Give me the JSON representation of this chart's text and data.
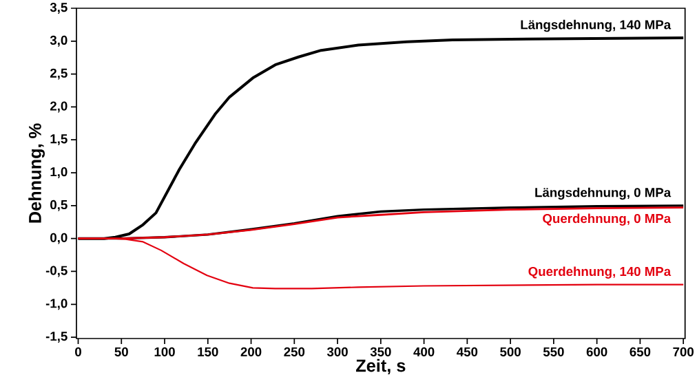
{
  "chart_data": {
    "type": "line",
    "xlabel": "Zeit, s",
    "ylabel": "Dehnung, %",
    "xlim": [
      -2,
      702
    ],
    "ylim": [
      -1.52,
      3.5
    ],
    "xticks": [
      0,
      50,
      100,
      150,
      200,
      250,
      300,
      350,
      400,
      450,
      500,
      550,
      600,
      650,
      700
    ],
    "yticks": [
      {
        "value": -1.5,
        "label": "-1,5"
      },
      {
        "value": -1.0,
        "label": "-1,0"
      },
      {
        "value": -0.5,
        "label": "-0,5"
      },
      {
        "value": 0.0,
        "label": "0,0"
      },
      {
        "value": 0.5,
        "label": "0,5"
      },
      {
        "value": 1.0,
        "label": "1,0"
      },
      {
        "value": 1.5,
        "label": "1,5"
      },
      {
        "value": 2.0,
        "label": "2,0"
      },
      {
        "value": 2.5,
        "label": "2,5"
      },
      {
        "value": 3.0,
        "label": "3,0"
      },
      {
        "value": 3.5,
        "label": "3,5"
      }
    ],
    "grid": false,
    "legend": false,
    "marker": "none",
    "line_style": "solid",
    "series": [
      {
        "name": "Längsdehnung, 140 MPa",
        "color": "#000000",
        "x": [
          0,
          30,
          43,
          59,
          75,
          90,
          117,
          135,
          159,
          175,
          202,
          228,
          255,
          281,
          324,
          380,
          433,
          500,
          600,
          700
        ],
        "values": [
          0,
          0,
          0.02,
          0.07,
          0.21,
          0.39,
          1.05,
          1.44,
          1.9,
          2.15,
          2.44,
          2.64,
          2.76,
          2.86,
          2.94,
          2.99,
          3.02,
          3.03,
          3.04,
          3.05
        ]
      },
      {
        "name": "Längsdehnung, 0 MPa",
        "color": "#000000",
        "x": [
          0,
          50,
          100,
          150,
          200,
          250,
          300,
          350,
          400,
          500,
          600,
          700
        ],
        "values": [
          0,
          0,
          0.02,
          0.06,
          0.14,
          0.23,
          0.34,
          0.41,
          0.44,
          0.47,
          0.49,
          0.5
        ]
      },
      {
        "name": "Querdehnung, 0 MPa",
        "color": "#e3000f",
        "x": [
          0,
          50,
          100,
          150,
          200,
          250,
          300,
          350,
          400,
          500,
          600,
          700
        ],
        "values": [
          0,
          0,
          0.02,
          0.06,
          0.13,
          0.22,
          0.32,
          0.36,
          0.4,
          0.44,
          0.46,
          0.47
        ]
      },
      {
        "name": "Querdehnung, 140 MPa",
        "color": "#e3000f",
        "x": [
          0,
          40,
          55,
          75,
          96,
          122,
          149,
          175,
          202,
          228,
          270,
          324,
          400,
          500,
          600,
          700
        ],
        "values": [
          0,
          0,
          -0.01,
          -0.05,
          -0.18,
          -0.38,
          -0.56,
          -0.68,
          -0.75,
          -0.76,
          -0.76,
          -0.74,
          -0.72,
          -0.71,
          -0.7,
          -0.7
        ]
      }
    ]
  }
}
